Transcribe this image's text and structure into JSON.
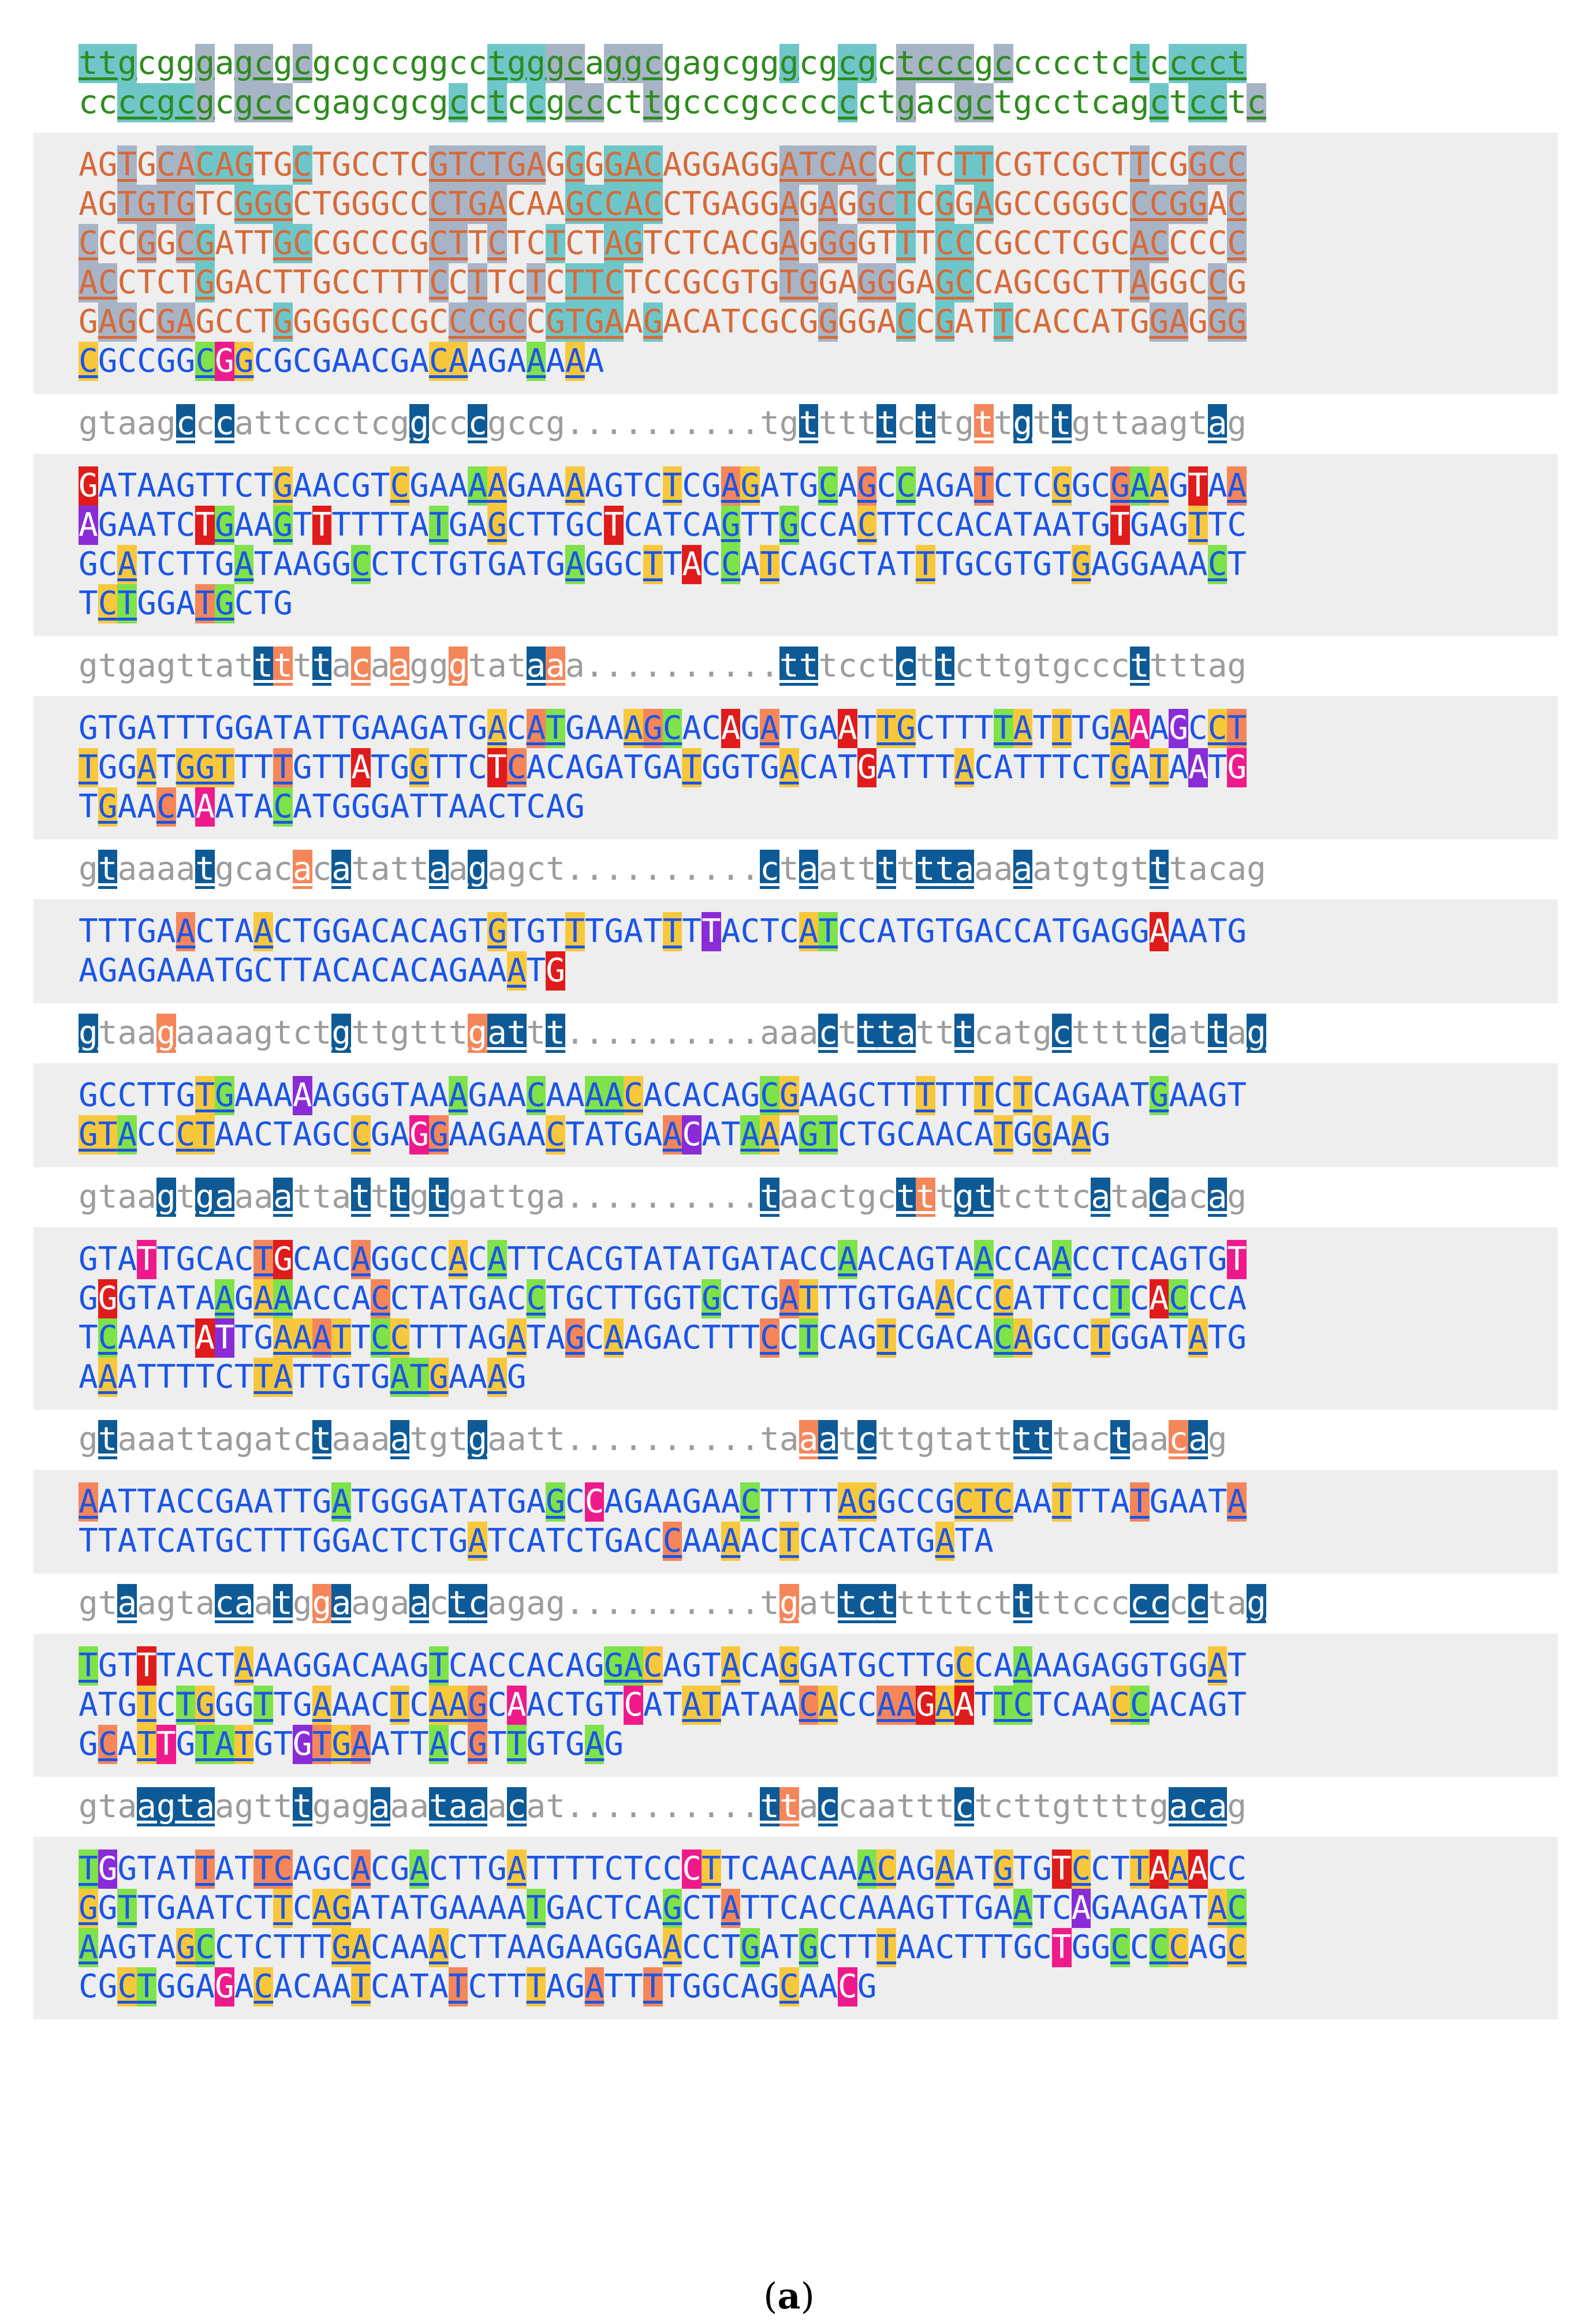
{
  "caption": {
    "open": "(",
    "letter": "a",
    "close": ")"
  },
  "colors": {
    "exon_text": "#1b55e6",
    "intron_text": "#9c9c9c",
    "utr5_text": "#2e8b1e",
    "utr3_text": "#d66a3a",
    "teal": "#6fc6c8",
    "slate": "#a7b4c6",
    "yellow": "#f8c83c",
    "green": "#7ee24a",
    "orange": "#f5865a",
    "navy": "#0e5a96",
    "pink": "#ee82c8",
    "magenta": "#ee1a8c",
    "purple": "#8a2bd8",
    "red": "#e01b1b",
    "darkgreen": "#3a9a30"
  },
  "blocks": [
    {
      "kind": "plain",
      "lines": [
        {
          "cls": "utr5",
          "text": "ttgcgggagcgcgcgccggcctgggcaggcgagcgggcgcgctcccgccccctctcccct"
        },
        {
          "cls": "utr5",
          "text": "ccccgcgcgcccgagcgcgcctccgcccttgcccgcccccctgacgctgcctcagctcctc"
        }
      ]
    },
    {
      "kind": "shaded",
      "lines": [
        {
          "cls": "utr3",
          "text": "AGTGCACAGTGCTGCCTCGTCTGAGGGGACAGGAGGATCACCCTCTTCGTCGCTTCGGCC"
        },
        {
          "cls": "utr3",
          "text": "AGTGTGTCGGGCTGGGCCCTGACAAGCCACCTGAGGAGAGGCTCGGAGCCGGGCCCGGAC"
        },
        {
          "cls": "utr3",
          "text": "CCCGGCGATTGCCGCCCGCTTCTCTCTAGTCTCACGAGGGGTTTCCCGCCTCGCACCCCC"
        },
        {
          "cls": "utr3",
          "text": "ACCTCTGGACTTGCCTTTCCTTCTCTTCTCCGCGTGTGGAGGGAGCCAGCGCTTAGGCCG"
        },
        {
          "cls": "utr3",
          "text": "GAGCGAGCCTGGGGGCCGCCCGCCGTGAAGACATCGCGGGGACCGATTCACCATGGAGGG"
        },
        {
          "cls": "exon",
          "text": "CGCCGGCGGCGCGAACGACAAGAAAAA"
        }
      ]
    },
    {
      "kind": "plain",
      "lines": [
        {
          "cls": "intron",
          "text": "gtaagcccattccctcggcccgccg..........tgtttttcttgttgttgttaagtag"
        }
      ]
    },
    {
      "kind": "shaded",
      "lines": [
        {
          "cls": "exon",
          "text": "GATAAGTTCTGAACGTCGAAAAGAAAAGTCTCGAGATGCAGCCAGATCTCGGCGAAGTAA"
        },
        {
          "cls": "exon",
          "text": "AGAATCTGAAGTTTTTTATGAGCTTGCTCATCAGTTGCCACTTCCACATAATGTGAGTTC"
        },
        {
          "cls": "exon",
          "text": "GCATCTTGATAAGGCCTCTGTGATGAGGCTTACCATCAGCTATTTGCGTGTGAGGAAACT"
        },
        {
          "cls": "exon",
          "text": "TCTGGATGCTG"
        }
      ]
    },
    {
      "kind": "plain",
      "lines": [
        {
          "cls": "intron",
          "text": "gtgagttatttttacaagggtataaa..........tttcctcttcttgtgcccttttag"
        }
      ]
    },
    {
      "kind": "shaded",
      "lines": [
        {
          "cls": "exon",
          "text": "GTGATTTGGATATTGAAGATGACATGAAAGCACAGATGAATTGCTTTTATTTGAAAGCCT"
        },
        {
          "cls": "exon",
          "text": "TGGATGGTTTTGTTATGGTTCTCACAGATGATGGTGACATGATTTACATTTCTGATAATG"
        },
        {
          "cls": "exon",
          "text": "TGAACAAATACATGGGATTAACTCAG"
        }
      ]
    },
    {
      "kind": "plain",
      "lines": [
        {
          "cls": "intron",
          "text": "gtaaaatgcacacatattaagagct..........ctaattttttaaaaatgtgtttacag"
        }
      ]
    },
    {
      "kind": "shaded",
      "lines": [
        {
          "cls": "exon",
          "text": "TTTGAACTAACTGGACACAGTGTGTTTGATTTTACTCATCCATGTGACCATGAGGAAATG"
        },
        {
          "cls": "exon",
          "text": "AGAGAAATGCTTACACACAGAAATG"
        }
      ]
    },
    {
      "kind": "plain",
      "lines": [
        {
          "cls": "intron",
          "text": "gtaagaaaagtctgttgtttgattt..........aaactttatttcatgcttttcattag"
        }
      ]
    },
    {
      "kind": "shaded",
      "lines": [
        {
          "cls": "exon",
          "text": "GCCTTGTGAAAAAGGGTAAAGAACAAAACACACAGCGAAGCTTTTTTCTCAGAATGAAGT"
        },
        {
          "cls": "exon",
          "text": "GTACCCTAACTAGCCGAGGAAGAACTATGAACATAAAGTCTGCAACATGGAAG"
        }
      ]
    },
    {
      "kind": "plain",
      "lines": [
        {
          "cls": "intron",
          "text": "gtaagtgaaaattatttgtgattga..........taactgctttgttcttcatacacag"
        }
      ]
    },
    {
      "kind": "shaded",
      "lines": [
        {
          "cls": "exon",
          "text": "GTATTGCACTGCACAGGCCACATTCACGTATATGATACCAACAGTAACCAACCTCAGTGT"
        },
        {
          "cls": "exon",
          "text": "GGGTATAAGAAACCACCTATGACCTGCTTGGTGCTGATTTGTGAACCCATTCCTCACCCA"
        },
        {
          "cls": "exon",
          "text": "TCAAATATTGAAATTCCTTTAGATAGCAAGACTTTCCTCAGTCGACACAGCCTGGATATG"
        },
        {
          "cls": "exon",
          "text": "AAATTTTCTTATTGTGATGAAAG"
        }
      ]
    },
    {
      "kind": "plain",
      "lines": [
        {
          "cls": "intron",
          "text": "gtaaattagatctaaaatgtgaatt..........taaatcttgtatttttactaacag"
        }
      ]
    },
    {
      "kind": "shaded",
      "lines": [
        {
          "cls": "exon",
          "text": "AATTACCGAATTGATGGGATATGAGCCAGAAGAACTTTTAGGCCGCTCAATTTATGAATA"
        },
        {
          "cls": "exon",
          "text": "TTATCATGCTTTGGACTCTGATCATCTGACCAAAACTCATCATGATA"
        }
      ]
    },
    {
      "kind": "plain",
      "lines": [
        {
          "cls": "intron",
          "text": "gtaagtacaatggaagaactcagag..........tgattctttttcttttccccccctag"
        }
      ]
    },
    {
      "kind": "shaded",
      "lines": [
        {
          "cls": "exon",
          "text": "TGTTTACTAAAGGACAAGTCACCACAGGACAGTACAGGATGCTTGCCAAAAGAGGTGGAT"
        },
        {
          "cls": "exon",
          "text": "ATGTCTGGGTTGAAACTCAAGCAACTGTCATATATAACACCAAGAATTCTCAACCACAGT"
        },
        {
          "cls": "exon",
          "text": "GCATTGTATGTGTGAATTACGTTGTGAG"
        }
      ]
    },
    {
      "kind": "plain",
      "lines": [
        {
          "cls": "intron",
          "text": "gtaagtaagtttgagaaataaacat..........ttaccaatttctcttgttttgacag"
        }
      ]
    },
    {
      "kind": "shaded",
      "lines": [
        {
          "cls": "exon",
          "text": "TGGTATTATTCAGCACGACTTGATTTTCTCCCTTCAACAAACAGAATGTGTCCTTAAACC"
        },
        {
          "cls": "exon",
          "text": "GGTTGAATCTTCAGATATGAAAATGACTCAGCTATTCACCAAAGTTGAATCAGAAGATAC"
        },
        {
          "cls": "exon",
          "text": "AAGTAGCCTCTTTGACAAACTTAAGAAGGAACCTGATGCTTTAACTTTGCTGGCCCCAGC"
        },
        {
          "cls": "exon",
          "text": "CGCTGGAGACACAATCATATCTTTAGATTTTGGCAGCAACG"
        }
      ]
    }
  ]
}
